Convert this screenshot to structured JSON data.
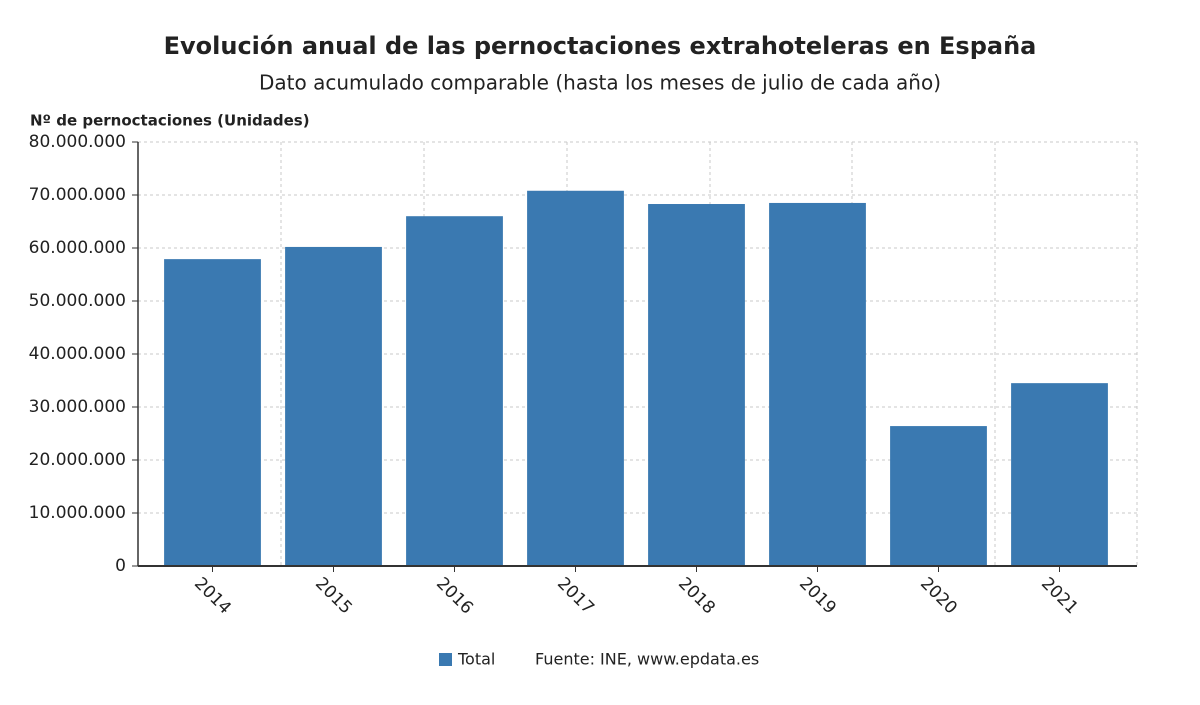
{
  "chart_data": {
    "type": "bar",
    "title": "Evolución anual de las pernoctaciones extrahoteleras en España",
    "subtitle": "Dato acumulado comparable (hasta los meses de julio de cada año)",
    "y_label": "Nº de pernoctaciones (Unidades)",
    "source": "Fuente: INE, www.epdata.es",
    "categories": [
      "2014",
      "2015",
      "2016",
      "2017",
      "2018",
      "2019",
      "2020",
      "2021"
    ],
    "series": [
      {
        "name": "Total",
        "color": "#3a79b1",
        "values": [
          57900000,
          60200000,
          66000000,
          70800000,
          68300000,
          68500000,
          26400000,
          34500000
        ]
      }
    ],
    "ylim": [
      0,
      80000000
    ],
    "yticks": [
      0,
      {
        "value": 10000000,
        "label": "10.000.000"
      },
      {
        "value": 20000000,
        "label": "20.000.000"
      },
      {
        "value": 30000000,
        "label": "30.000.000"
      },
      {
        "value": 40000000,
        "label": "40.000.000"
      },
      {
        "value": 50000000,
        "label": "50.000.000"
      },
      {
        "value": 60000000,
        "label": "60.000.000"
      },
      {
        "value": 70000000,
        "label": "70.000.000"
      },
      {
        "value": 80000000,
        "label": "80.000.000"
      }
    ],
    "grid": true
  }
}
